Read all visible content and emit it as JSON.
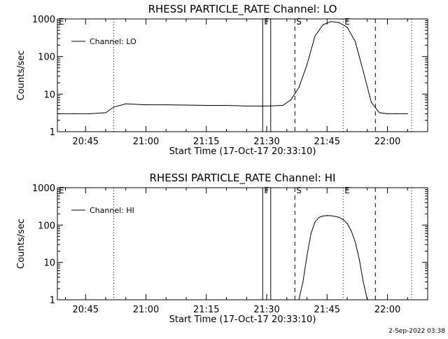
{
  "footer": {
    "timestamp": "2-Sep-2022 03:38"
  },
  "chart_data": [
    {
      "type": "line",
      "title": "RHESSI PARTICLE_RATE Channel: LO",
      "xlabel": "Start Time (17-Oct-17 20:33:10)",
      "ylabel": "Counts/sec",
      "y_scale": "log",
      "xlim": [
        "20:38",
        "22:10"
      ],
      "ylim": [
        1,
        1000
      ],
      "x_ticks": [
        "20:45",
        "21:00",
        "21:15",
        "21:30",
        "21:45",
        "22:00"
      ],
      "y_ticks": [
        "1",
        "10",
        "100",
        "1000"
      ],
      "legend": {
        "entries": [
          "Channel: LO"
        ],
        "placement": "upper-left"
      },
      "grid": false,
      "markers": [
        {
          "label": "E",
          "time": "20:38",
          "style": "dashed"
        },
        {
          "label": "",
          "time": "20:52",
          "style": "dotted"
        },
        {
          "label": "F",
          "time": "21:29",
          "style": "solid"
        },
        {
          "label": "",
          "time": "21:31",
          "style": "solid"
        },
        {
          "label": "S",
          "time": "21:37",
          "style": "dashed"
        },
        {
          "label": "E",
          "time": "21:49",
          "style": "dotted"
        },
        {
          "label": "",
          "time": "21:57",
          "style": "dashed"
        },
        {
          "label": "",
          "time": "22:06",
          "style": "dotted"
        }
      ],
      "series": [
        {
          "name": "Channel: LO",
          "x": [
            "20:38",
            "20:42",
            "20:46",
            "20:50",
            "20:52",
            "20:55",
            "21:00",
            "21:05",
            "21:10",
            "21:15",
            "21:20",
            "21:25",
            "21:30",
            "21:34",
            "21:36",
            "21:38",
            "21:40",
            "21:42",
            "21:44",
            "21:46",
            "21:48",
            "21:50",
            "21:52",
            "21:54",
            "21:56",
            "21:58",
            "22:00",
            "22:02",
            "22:04",
            "22:05"
          ],
          "y": [
            3,
            3,
            3,
            3.2,
            4.5,
            5.5,
            5.2,
            5.2,
            5.1,
            5,
            5,
            4.8,
            4.8,
            5,
            7,
            15,
            60,
            350,
            700,
            850,
            800,
            600,
            250,
            40,
            6,
            3.2,
            3,
            3,
            3,
            3
          ]
        }
      ]
    },
    {
      "type": "line",
      "title": "RHESSI PARTICLE_RATE Channel: HI",
      "xlabel": "Start Time (17-Oct-17 20:33:10)",
      "ylabel": "Counts/sec",
      "y_scale": "log",
      "xlim": [
        "20:38",
        "22:10"
      ],
      "ylim": [
        1,
        1000
      ],
      "x_ticks": [
        "20:45",
        "21:00",
        "21:15",
        "21:30",
        "21:45",
        "22:00"
      ],
      "y_ticks": [
        "1",
        "10",
        "100",
        "1000"
      ],
      "legend": {
        "entries": [
          "Channel: HI"
        ],
        "placement": "upper-left"
      },
      "grid": false,
      "markers": [
        {
          "label": "E",
          "time": "20:38",
          "style": "dashed"
        },
        {
          "label": "",
          "time": "20:52",
          "style": "dotted"
        },
        {
          "label": "F",
          "time": "21:29",
          "style": "solid"
        },
        {
          "label": "",
          "time": "21:31",
          "style": "solid"
        },
        {
          "label": "S",
          "time": "21:37",
          "style": "dashed"
        },
        {
          "label": "E",
          "time": "21:49",
          "style": "dotted"
        },
        {
          "label": "",
          "time": "21:57",
          "style": "dashed"
        },
        {
          "label": "",
          "time": "22:06",
          "style": "dotted"
        }
      ],
      "series": [
        {
          "name": "Channel: HI",
          "x": [
            "21:38",
            "21:39",
            "21:40",
            "21:41",
            "21:42",
            "21:43",
            "21:44",
            "21:45",
            "21:46",
            "21:47",
            "21:48",
            "21:49",
            "21:50",
            "21:51",
            "21:52",
            "21:53",
            "21:54",
            "21:55"
          ],
          "y": [
            1,
            3,
            15,
            60,
            120,
            160,
            175,
            180,
            178,
            170,
            160,
            140,
            110,
            70,
            35,
            12,
            3,
            1
          ]
        }
      ]
    }
  ]
}
